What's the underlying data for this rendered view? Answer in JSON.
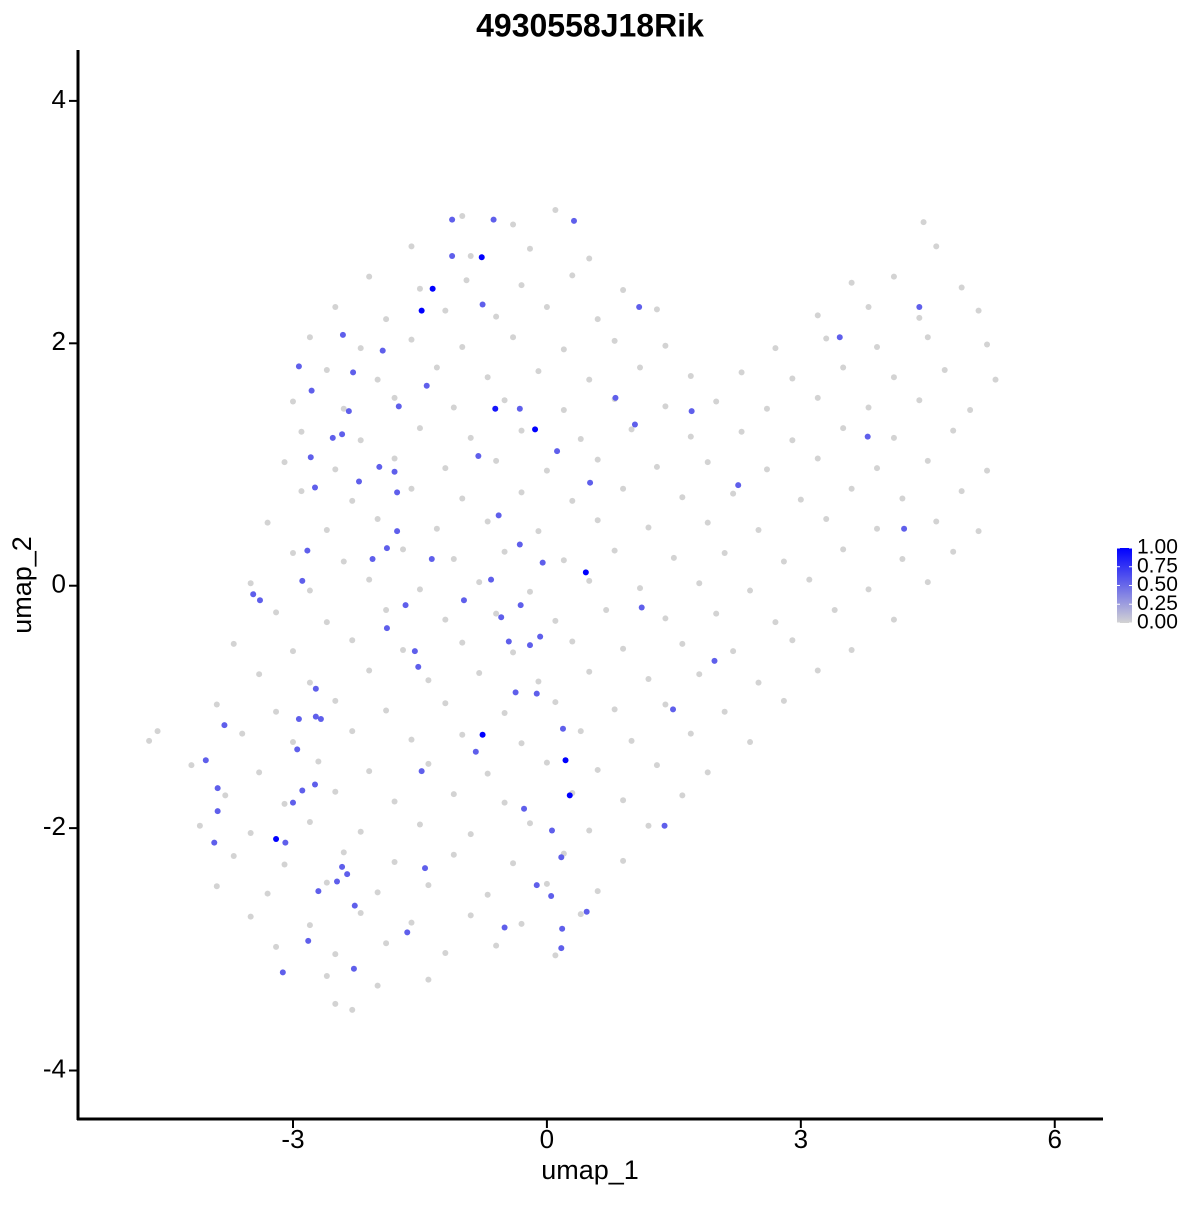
{
  "chart_data": {
    "type": "scatter",
    "title": "4930558J18Rik",
    "x_label": "umap_1",
    "y_label": "umap_2",
    "xlim": [
      -5.54,
      6.57
    ],
    "ylim": [
      -4.4,
      4.42
    ],
    "xticks": [
      -3,
      0,
      3,
      6
    ],
    "yticks": [
      -4,
      -2,
      0,
      2,
      4
    ],
    "grid": false,
    "clim": [
      0,
      1
    ],
    "low_color": "#d3d3d3",
    "high_color": "#0000ff",
    "colorbar_ticks": [
      {
        "value": 0,
        "label": "0.00"
      },
      {
        "value": 0.25,
        "label": "0.25"
      },
      {
        "value": 0.5,
        "label": "0.50"
      },
      {
        "value": 0.75,
        "label": "0.75"
      },
      {
        "value": 1,
        "label": "1.00"
      }
    ],
    "series": [
      {
        "x": [
          -1.0,
          -0.4,
          0.1,
          4.45,
          -1.6,
          -0.9,
          -0.2,
          0.5,
          4.6,
          -2.1,
          -1.5,
          -0.95,
          -0.3,
          0.3,
          0.9,
          3.6,
          4.1,
          4.9,
          -2.5,
          -1.9,
          -1.2,
          -0.6,
          0.0,
          0.6,
          1.3,
          3.2,
          3.8,
          4.4,
          5.1,
          -2.8,
          -2.2,
          -1.6,
          -1.0,
          -0.4,
          0.2,
          0.8,
          1.4,
          2.7,
          3.3,
          3.9,
          4.5,
          5.2,
          -2.6,
          -2.0,
          -1.3,
          -0.7,
          -0.1,
          0.5,
          1.1,
          1.7,
          2.3,
          2.9,
          3.5,
          4.1,
          4.7,
          5.3,
          -3.0,
          -2.4,
          -1.8,
          -1.1,
          -0.5,
          0.2,
          0.8,
          1.4,
          2.0,
          2.6,
          3.2,
          3.8,
          4.4,
          5.0,
          -2.9,
          -2.2,
          -1.5,
          -0.9,
          -0.3,
          0.4,
          1.0,
          1.7,
          2.3,
          2.9,
          3.5,
          4.1,
          4.8,
          -3.1,
          -2.5,
          -1.8,
          -1.2,
          -0.6,
          0.0,
          0.6,
          1.3,
          1.9,
          2.6,
          3.2,
          3.9,
          4.5,
          5.2,
          -2.9,
          -2.3,
          -1.6,
          -1.0,
          -0.3,
          0.3,
          0.9,
          1.6,
          2.2,
          3.0,
          3.6,
          4.2,
          4.9,
          -3.3,
          -2.6,
          -2.0,
          -1.3,
          -0.7,
          -0.1,
          0.6,
          1.2,
          1.9,
          2.5,
          3.3,
          3.9,
          4.6,
          5.1,
          -3.0,
          -2.4,
          -1.7,
          -1.1,
          -0.5,
          0.2,
          0.8,
          1.5,
          2.1,
          2.8,
          3.5,
          4.2,
          4.8,
          -3.5,
          -2.8,
          -2.1,
          -1.5,
          -0.8,
          -0.2,
          0.5,
          1.1,
          1.8,
          2.4,
          3.1,
          3.8,
          4.5,
          -3.2,
          -2.6,
          -1.9,
          -1.2,
          -0.6,
          0.1,
          0.7,
          1.4,
          2.0,
          2.7,
          3.4,
          4.1,
          -3.7,
          -3.0,
          -2.3,
          -1.7,
          -1.0,
          -0.4,
          0.3,
          0.9,
          1.6,
          2.2,
          2.9,
          3.6,
          -3.4,
          -2.8,
          -2.1,
          -1.4,
          -0.8,
          -0.1,
          0.5,
          1.2,
          1.8,
          2.5,
          3.2,
          -3.9,
          -3.2,
          -2.5,
          -1.9,
          -1.2,
          -0.5,
          0.1,
          0.8,
          1.4,
          2.1,
          2.8,
          -4.7,
          -4.6,
          -3.6,
          -3.0,
          -2.3,
          -1.6,
          -1.0,
          -0.3,
          0.4,
          1.0,
          1.7,
          2.4,
          -4.2,
          -3.4,
          -2.7,
          -2.1,
          -1.4,
          -0.7,
          0.0,
          0.6,
          1.3,
          1.9,
          -3.8,
          -3.1,
          -2.5,
          -1.8,
          -1.1,
          -0.5,
          0.3,
          0.9,
          1.6,
          -4.1,
          -3.5,
          -2.8,
          -2.2,
          -1.5,
          -0.9,
          -0.2,
          0.5,
          1.2,
          -3.7,
          -3.1,
          -2.4,
          -1.8,
          -1.1,
          -0.4,
          0.2,
          0.9,
          -3.9,
          -3.3,
          -2.6,
          -2.0,
          -1.4,
          -0.7,
          0.0,
          0.6,
          -3.5,
          -2.8,
          -2.2,
          -1.6,
          -0.9,
          -0.3,
          0.4,
          -3.2,
          -2.5,
          -1.9,
          -1.2,
          -0.6,
          0.1,
          -2.6,
          -2.0,
          -1.4,
          -2.5,
          -2.3,
          -1.12,
          -0.63,
          -1.12,
          0.32,
          -0.76,
          1.09,
          -2.41,
          -1.94,
          -2.93,
          -2.29,
          -1.42,
          -2.78,
          -1.75,
          -2.34,
          -0.32,
          0.81,
          1.71,
          3.46,
          4.4,
          3.79,
          1.04,
          -2.53,
          -2.42,
          0.12,
          -0.81,
          -2.79,
          -1.98,
          -1.8,
          -2.22,
          -2.74,
          0.51,
          2.26,
          -1.77,
          -0.57,
          -1.77,
          -0.32,
          4.22,
          -2.83,
          -1.89,
          -2.06,
          -1.36,
          -0.05,
          -2.89,
          -0.66,
          -3.47,
          -3.39,
          -0.98,
          -1.67,
          -0.31,
          1.12,
          -0.54,
          -1.89,
          -0.08,
          -0.45,
          -0.2,
          -1.56,
          1.98,
          -1.52,
          -2.73,
          -0.37,
          -0.12,
          1.49,
          -2.93,
          -2.73,
          -2.67,
          -3.81,
          0.19,
          -2.95,
          -0.84,
          -4.03,
          -1.48,
          -2.74,
          -3.89,
          -2.89,
          -3.0,
          -0.27,
          -3.89,
          1.39,
          0.06,
          -3.09,
          -3.93,
          0.17,
          -2.42,
          -1.44,
          -2.36,
          -2.48,
          -0.12,
          -2.7,
          0.05,
          -2.27,
          0.47,
          -0.5,
          0.18,
          -1.65,
          -2.82,
          0.17,
          -2.28,
          -3.12,
          -0.61,
          -0.77,
          -1.35,
          -1.48,
          -0.14,
          0.46,
          -0.76,
          0.22,
          0.27,
          -3.2
        ],
        "y": [
          3.05,
          2.98,
          3.1,
          3.0,
          2.8,
          2.72,
          2.78,
          2.7,
          2.8,
          2.55,
          2.45,
          2.52,
          2.48,
          2.56,
          2.44,
          2.5,
          2.55,
          2.46,
          2.3,
          2.2,
          2.27,
          2.22,
          2.3,
          2.2,
          2.28,
          2.23,
          2.3,
          2.21,
          2.27,
          2.05,
          1.96,
          2.03,
          1.97,
          2.05,
          1.95,
          2.02,
          1.98,
          1.96,
          2.04,
          1.97,
          2.05,
          1.99,
          1.78,
          1.7,
          1.8,
          1.72,
          1.77,
          1.7,
          1.8,
          1.73,
          1.76,
          1.71,
          1.8,
          1.72,
          1.78,
          1.7,
          1.52,
          1.46,
          1.55,
          1.47,
          1.53,
          1.45,
          1.54,
          1.48,
          1.52,
          1.46,
          1.55,
          1.47,
          1.53,
          1.45,
          1.27,
          1.2,
          1.3,
          1.22,
          1.28,
          1.21,
          1.29,
          1.23,
          1.27,
          1.2,
          1.3,
          1.22,
          1.28,
          1.02,
          0.96,
          1.05,
          0.97,
          1.03,
          0.95,
          1.04,
          0.98,
          1.02,
          0.96,
          1.05,
          0.97,
          1.03,
          0.95,
          0.78,
          0.7,
          0.8,
          0.72,
          0.77,
          0.7,
          0.8,
          0.73,
          0.76,
          0.71,
          0.8,
          0.72,
          0.78,
          0.52,
          0.46,
          0.55,
          0.47,
          0.53,
          0.45,
          0.54,
          0.48,
          0.52,
          0.46,
          0.55,
          0.47,
          0.53,
          0.45,
          0.27,
          0.2,
          0.3,
          0.22,
          0.28,
          0.21,
          0.29,
          0.23,
          0.27,
          0.2,
          0.3,
          0.22,
          0.28,
          0.02,
          -0.04,
          0.05,
          -0.03,
          0.03,
          -0.05,
          0.04,
          -0.02,
          0.02,
          -0.04,
          0.05,
          -0.03,
          0.03,
          -0.22,
          -0.3,
          -0.2,
          -0.28,
          -0.23,
          -0.29,
          -0.2,
          -0.27,
          -0.23,
          -0.3,
          -0.2,
          -0.28,
          -0.48,
          -0.54,
          -0.45,
          -0.53,
          -0.47,
          -0.55,
          -0.46,
          -0.52,
          -0.48,
          -0.54,
          -0.45,
          -0.53,
          -0.73,
          -0.8,
          -0.7,
          -0.78,
          -0.72,
          -0.79,
          -0.71,
          -0.77,
          -0.73,
          -0.8,
          -0.7,
          -0.98,
          -1.04,
          -0.95,
          -1.03,
          -0.97,
          -1.05,
          -0.96,
          -1.02,
          -0.98,
          -1.04,
          -0.95,
          -1.28,
          -1.2,
          -1.22,
          -1.29,
          -1.2,
          -1.27,
          -1.23,
          -1.3,
          -1.2,
          -1.28,
          -1.22,
          -1.29,
          -1.48,
          -1.54,
          -1.45,
          -1.53,
          -1.47,
          -1.55,
          -1.46,
          -1.52,
          -1.48,
          -1.54,
          -1.73,
          -1.8,
          -1.7,
          -1.78,
          -1.72,
          -1.79,
          -1.71,
          -1.77,
          -1.73,
          -1.98,
          -2.04,
          -1.95,
          -2.03,
          -1.97,
          -2.05,
          -1.96,
          -2.02,
          -1.98,
          -2.23,
          -2.3,
          -2.2,
          -2.28,
          -2.22,
          -2.29,
          -2.21,
          -2.27,
          -2.48,
          -2.54,
          -2.45,
          -2.53,
          -2.47,
          -2.55,
          -2.46,
          -2.52,
          -2.73,
          -2.8,
          -2.7,
          -2.78,
          -2.72,
          -2.79,
          -2.71,
          -2.98,
          -3.04,
          -2.95,
          -3.03,
          -2.97,
          -3.05,
          -3.22,
          -3.3,
          -3.25,
          -3.45,
          -3.5,
          2.72,
          3.02,
          3.02,
          3.01,
          2.32,
          2.3,
          2.07,
          1.94,
          1.81,
          1.76,
          1.65,
          1.61,
          1.48,
          1.44,
          1.46,
          1.55,
          1.44,
          2.05,
          2.3,
          1.23,
          1.33,
          1.22,
          1.25,
          1.11,
          1.07,
          1.06,
          0.98,
          0.94,
          0.86,
          0.81,
          0.85,
          0.83,
          0.77,
          0.58,
          0.45,
          0.34,
          0.47,
          0.29,
          0.31,
          0.22,
          0.22,
          0.19,
          0.04,
          0.05,
          -0.07,
          -0.12,
          -0.12,
          -0.16,
          -0.16,
          -0.18,
          -0.26,
          -0.35,
          -0.42,
          -0.46,
          -0.49,
          -0.54,
          -0.62,
          -0.67,
          -0.85,
          -0.88,
          -0.89,
          -1.02,
          -1.1,
          -1.08,
          -1.1,
          -1.15,
          -1.18,
          -1.35,
          -1.37,
          -1.44,
          -1.53,
          -1.64,
          -1.67,
          -1.69,
          -1.79,
          -1.84,
          -1.86,
          -1.98,
          -2.02,
          -2.12,
          -2.12,
          -2.24,
          -2.32,
          -2.33,
          -2.38,
          -2.44,
          -2.47,
          -2.52,
          -2.56,
          -2.64,
          -2.69,
          -2.82,
          -2.83,
          -2.86,
          -2.93,
          -2.99,
          -3.16,
          -3.19,
          1.46,
          2.71,
          2.45,
          2.27,
          1.29,
          0.11,
          -1.23,
          -1.44,
          -1.73,
          -2.09
        ],
        "values": [
          0,
          0,
          0,
          0,
          0,
          0,
          0,
          0,
          0,
          0,
          0,
          0,
          0,
          0,
          0,
          0,
          0,
          0,
          0,
          0,
          0,
          0,
          0,
          0,
          0,
          0,
          0,
          0,
          0,
          0,
          0,
          0,
          0,
          0,
          0,
          0,
          0,
          0,
          0,
          0,
          0,
          0,
          0,
          0,
          0,
          0,
          0,
          0,
          0,
          0,
          0,
          0,
          0,
          0,
          0,
          0,
          0,
          0,
          0,
          0,
          0,
          0,
          0,
          0,
          0,
          0,
          0,
          0,
          0,
          0,
          0,
          0,
          0,
          0,
          0,
          0,
          0,
          0,
          0,
          0,
          0,
          0,
          0,
          0,
          0,
          0,
          0,
          0,
          0,
          0,
          0,
          0,
          0,
          0,
          0,
          0,
          0,
          0,
          0,
          0,
          0,
          0,
          0,
          0,
          0,
          0,
          0,
          0,
          0,
          0,
          0,
          0,
          0,
          0,
          0,
          0,
          0,
          0,
          0,
          0,
          0,
          0,
          0,
          0,
          0,
          0,
          0,
          0,
          0,
          0,
          0,
          0,
          0,
          0,
          0,
          0,
          0,
          0,
          0,
          0,
          0,
          0,
          0,
          0,
          0,
          0,
          0,
          0,
          0,
          0,
          0,
          0,
          0,
          0,
          0,
          0,
          0,
          0,
          0,
          0,
          0,
          0,
          0,
          0,
          0,
          0,
          0,
          0,
          0,
          0,
          0,
          0,
          0,
          0,
          0,
          0,
          0,
          0,
          0,
          0,
          0,
          0,
          0,
          0,
          0,
          0,
          0,
          0,
          0,
          0,
          0,
          0,
          0,
          0,
          0,
          0,
          0,
          0,
          0,
          0,
          0,
          0,
          0,
          0,
          0,
          0,
          0,
          0,
          0,
          0,
          0,
          0,
          0,
          0,
          0,
          0,
          0,
          0,
          0,
          0,
          0,
          0,
          0,
          0,
          0,
          0,
          0,
          0,
          0,
          0,
          0,
          0,
          0,
          0,
          0,
          0,
          0,
          0,
          0,
          0,
          0,
          0,
          0,
          0,
          0,
          0,
          0,
          0,
          0,
          0,
          0,
          0,
          0,
          0,
          0,
          0,
          0,
          0,
          0,
          0,
          0,
          0,
          0,
          0,
          0,
          0,
          0,
          0,
          0,
          0,
          0.55,
          0.55,
          0.55,
          0.55,
          0.55,
          0.55,
          0.55,
          0.55,
          0.55,
          0.55,
          0.55,
          0.55,
          0.55,
          0.55,
          0.55,
          0.55,
          0.55,
          0.55,
          0.55,
          0.55,
          0.55,
          0.55,
          0.55,
          0.55,
          0.55,
          0.55,
          0.55,
          0.55,
          0.55,
          0.55,
          0.55,
          0.55,
          0.55,
          0.55,
          0.55,
          0.55,
          0.55,
          0.55,
          0.55,
          0.55,
          0.55,
          0.55,
          0.55,
          0.55,
          0.55,
          0.55,
          0.55,
          0.55,
          0.55,
          0.55,
          0.55,
          0.55,
          0.55,
          0.55,
          0.55,
          0.55,
          0.55,
          0.55,
          0.55,
          0.55,
          0.55,
          0.55,
          0.55,
          0.55,
          0.55,
          0.55,
          0.55,
          0.55,
          0.55,
          0.55,
          0.55,
          0.55,
          0.55,
          0.55,
          0.55,
          0.55,
          0.55,
          0.55,
          0.55,
          0.55,
          0.55,
          0.55,
          0.55,
          0.55,
          0.55,
          0.55,
          0.55,
          0.55,
          0.55,
          0.55,
          0.55,
          0.55,
          0.55,
          0.55,
          0.55,
          0.55,
          0.55,
          0.55,
          0.9,
          1,
          1,
          1,
          1,
          1,
          1,
          1,
          1,
          1
        ]
      }
    ]
  }
}
